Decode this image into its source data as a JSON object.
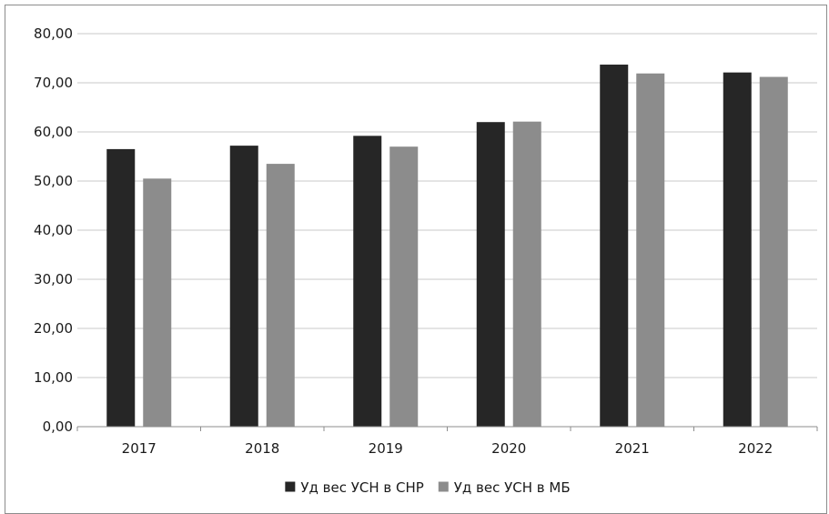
{
  "chart_data": {
    "type": "bar",
    "categories": [
      "2017",
      "2018",
      "2019",
      "2020",
      "2021",
      "2022"
    ],
    "series": [
      {
        "name": "Уд вес УСН в СНР",
        "color": "#262626",
        "values": [
          56.5,
          57.2,
          59.2,
          62.0,
          73.7,
          72.1
        ]
      },
      {
        "name": "Уд вес УСН в МБ",
        "color": "#8c8c8c",
        "values": [
          50.5,
          53.5,
          57.0,
          62.1,
          71.9,
          71.2
        ]
      }
    ],
    "ylim": [
      0,
      80
    ],
    "yticks": [
      "0,00",
      "10,00",
      "20,00",
      "30,00",
      "40,00",
      "50,00",
      "60,00",
      "70,00",
      "80,00"
    ],
    "ytick_values": [
      0,
      10,
      20,
      30,
      40,
      50,
      60,
      70,
      80
    ],
    "grid": true,
    "legend_position": "bottom",
    "gridline_color": "#c8c8c8",
    "axis_color": "#8c8c8c"
  }
}
